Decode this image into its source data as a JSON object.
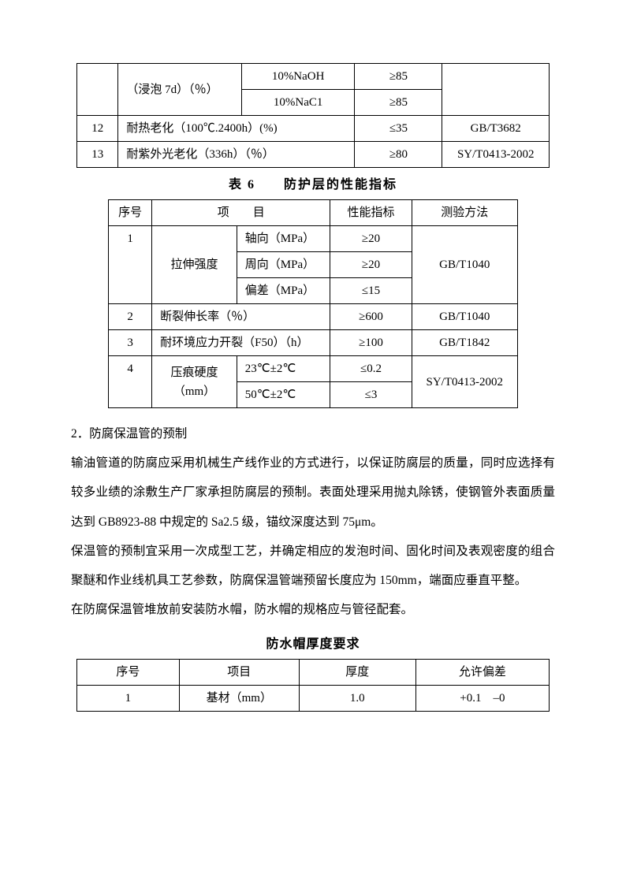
{
  "table1": {
    "rows": [
      {
        "c0": "",
        "c1": "（浸泡 7d）（％）",
        "c2": "10%NaOH",
        "c3": "≥85",
        "c4": ""
      },
      {
        "c0": "",
        "c1": "",
        "c2": "10%NaC1",
        "c3": "≥85",
        "c4": ""
      },
      {
        "c0": "12",
        "c1": "耐热老化（100℃.2400h）(%)",
        "c2": "",
        "c3": "≤35",
        "c4": "GB/T3682"
      },
      {
        "c0": "13",
        "c1": "耐紫外光老化（336h）（％）",
        "c2": "",
        "c3": "≥80",
        "c4": "SY/T0413-2002"
      }
    ]
  },
  "caption1": "表 6　　防护层的性能指标",
  "table2": {
    "head": {
      "c0": "序号",
      "c1": "项　　目",
      "c2": "性能指标",
      "c3": "测验方法"
    },
    "rows": [
      {
        "c0": "1",
        "c1a": "拉伸强度",
        "c1b": "轴向（MPa）",
        "c2": "≥20",
        "c3": "GB/T1040"
      },
      {
        "c1b": "周向（MPa）",
        "c2": "≥20"
      },
      {
        "c1b": "偏差（MPa）",
        "c2": "≤15"
      },
      {
        "c0": "2",
        "c1": "断裂伸长率（％）",
        "c2": "≥600",
        "c3": "GB/T1040"
      },
      {
        "c0": "3",
        "c1": "耐环境应力开裂（F50）（h）",
        "c2": "≥100",
        "c3": "GB/T1842"
      },
      {
        "c0": "4",
        "c1a": "压痕硬度（mm）",
        "c1b": "23℃±2℃",
        "c2": "≤0.2",
        "c3": "SY/T0413-2002"
      },
      {
        "c1b": "50℃±2℃",
        "c2": "≤3"
      }
    ]
  },
  "body": {
    "p1": "2．防腐保温管的预制",
    "p2": "输油管道的防腐应采用机械生产线作业的方式进行，以保证防腐层的质量，同时应选择有较多业绩的涂敷生产厂家承担防腐层的预制。表面处理采用抛丸除锈，使钢管外表面质量达到 GB8923-88 中规定的 Sa2.5 级，锚纹深度达到 75μm。",
    "p3": "保温管的预制宜采用一次成型工艺，并确定相应的发泡时间、固化时间及表观密度的组合聚醚和作业线机具工艺参数，防腐保温管端预留长度应为 150mm，端面应垂直平整。",
    "p4": "在防腐保温管堆放前安装防水帽，防水帽的规格应与管径配套。"
  },
  "caption2": "防水帽厚度要求",
  "table3": {
    "head": {
      "c0": "序号",
      "c1": "项目",
      "c2": "厚度",
      "c3": "允许偏差"
    },
    "rows": [
      {
        "c0": "1",
        "c1": "基材（mm）",
        "c2": "1.0",
        "c3": "+0.1　–0"
      }
    ]
  }
}
